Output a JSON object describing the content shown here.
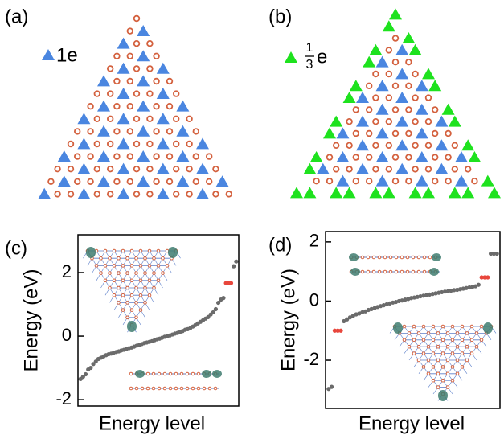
{
  "panels": {
    "a": {
      "label": "(a)",
      "charge_label": "1e"
    },
    "b": {
      "label": "(b)",
      "charge_numerator": "1",
      "charge_denominator": "3",
      "charge_unit": "e"
    }
  },
  "chart_data": [
    {
      "type": "scatter",
      "panel_label": "(c)",
      "x_label": "Energy level",
      "y_label": "Energy (eV)",
      "xlim": [
        0,
        63
      ],
      "ylim": [
        -2.2,
        3.19
      ],
      "yticks": [
        -2,
        0,
        2
      ],
      "series": [
        {
          "color": "#6b6b6b",
          "x": [
            1,
            2,
            3,
            4,
            5,
            6,
            7,
            8,
            9,
            10,
            11,
            12,
            13,
            14,
            15,
            16,
            17,
            18,
            19,
            20,
            21,
            22,
            23,
            24,
            25,
            26,
            27,
            28,
            29,
            30,
            31,
            32,
            33,
            34,
            35,
            36,
            37,
            38,
            39,
            40,
            41,
            42,
            43,
            44,
            45,
            46,
            47,
            48,
            49,
            50,
            51,
            52,
            53,
            54,
            55,
            56,
            57,
            61,
            62
          ],
          "values": [
            -1.35,
            -1.28,
            -1.2,
            -1.05,
            -1.0,
            -0.88,
            -0.8,
            -0.72,
            -0.68,
            -0.64,
            -0.6,
            -0.57,
            -0.55,
            -0.52,
            -0.5,
            -0.48,
            -0.45,
            -0.43,
            -0.4,
            -0.38,
            -0.36,
            -0.33,
            -0.3,
            -0.28,
            -0.25,
            -0.22,
            -0.2,
            -0.18,
            -0.16,
            -0.13,
            -0.1,
            -0.08,
            -0.05,
            -0.02,
            0.0,
            0.02,
            0.05,
            0.08,
            0.1,
            0.13,
            0.16,
            0.2,
            0.22,
            0.25,
            0.3,
            0.35,
            0.4,
            0.45,
            0.5,
            0.55,
            0.6,
            0.68,
            0.75,
            0.85,
            1.05,
            1.15,
            1.2,
            2.2,
            2.35
          ]
        },
        {
          "color": "#e8463c",
          "x": [
            58,
            59,
            60
          ],
          "values": [
            1.67,
            1.67,
            1.67
          ]
        }
      ]
    },
    {
      "type": "scatter",
      "panel_label": "(d)",
      "x_label": "Energy level",
      "y_label": "Energy (eV)",
      "xlim": [
        0,
        57
      ],
      "ylim": [
        -3.63,
        2.35
      ],
      "yticks": [
        -2,
        0,
        2
      ],
      "series": [
        {
          "color": "#6b6b6b",
          "x": [
            1,
            2,
            6,
            7,
            8,
            9,
            10,
            11,
            12,
            13,
            14,
            15,
            16,
            17,
            18,
            19,
            20,
            21,
            22,
            23,
            24,
            25,
            26,
            27,
            28,
            29,
            30,
            31,
            32,
            33,
            34,
            35,
            36,
            37,
            38,
            39,
            40,
            41,
            42,
            43,
            44,
            45,
            46,
            47,
            48,
            49,
            50,
            54,
            55,
            56
          ],
          "values": [
            -2.97,
            -2.9,
            -0.68,
            -0.62,
            -0.55,
            -0.5,
            -0.45,
            -0.42,
            -0.38,
            -0.35,
            -0.3,
            -0.27,
            -0.24,
            -0.2,
            -0.17,
            -0.14,
            -0.11,
            -0.08,
            -0.05,
            -0.03,
            0.0,
            0.02,
            0.05,
            0.07,
            0.1,
            0.12,
            0.14,
            0.16,
            0.18,
            0.2,
            0.22,
            0.24,
            0.26,
            0.28,
            0.3,
            0.32,
            0.33,
            0.35,
            0.37,
            0.38,
            0.4,
            0.42,
            0.44,
            0.46,
            0.48,
            0.5,
            0.55,
            1.6,
            1.6,
            1.6
          ]
        },
        {
          "color": "#e8463c",
          "x": [
            3,
            4,
            5,
            51,
            52,
            53
          ],
          "values": [
            -1.0,
            -1.0,
            -1.0,
            0.8,
            0.8,
            0.8
          ]
        }
      ]
    }
  ]
}
